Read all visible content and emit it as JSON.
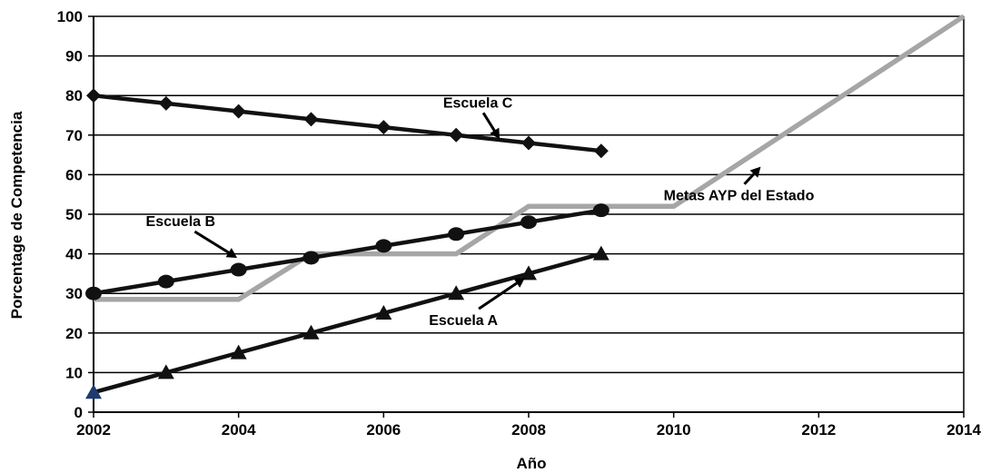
{
  "chart_data": {
    "type": "line",
    "xlabel": "Año",
    "ylabel": "Porcentage de Competencia",
    "xlim": [
      2002,
      2014
    ],
    "ylim": [
      0,
      100
    ],
    "xticks": [
      2002,
      2004,
      2006,
      2008,
      2010,
      2012,
      2014
    ],
    "yticks": [
      0,
      10,
      20,
      30,
      40,
      50,
      60,
      70,
      80,
      90,
      100
    ],
    "grid": "horizontal",
    "legend": "none",
    "series": [
      {
        "name": "Escuela C",
        "marker": "diamond",
        "color": "#111111",
        "x": [
          2002,
          2003,
          2004,
          2005,
          2006,
          2007,
          2008,
          2009
        ],
        "y": [
          80,
          78,
          76,
          74,
          72,
          70,
          68,
          66
        ]
      },
      {
        "name": "Escuela B",
        "marker": "circle",
        "color": "#111111",
        "x": [
          2002,
          2003,
          2004,
          2005,
          2006,
          2007,
          2008,
          2009
        ],
        "y": [
          30,
          33,
          36,
          39,
          42,
          45,
          48,
          51
        ]
      },
      {
        "name": "Escuela A",
        "marker": "triangle",
        "color": "#111111",
        "first_marker_color": "#1f3a6e",
        "x": [
          2002,
          2003,
          2004,
          2005,
          2006,
          2007,
          2008,
          2009
        ],
        "y": [
          5,
          10,
          15,
          20,
          25,
          30,
          35,
          40
        ]
      },
      {
        "name": "Metas AYP del Estado",
        "marker": "none",
        "color": "#a6a6a6",
        "x": [
          2002,
          2004,
          2005,
          2007,
          2008,
          2010,
          2014
        ],
        "y": [
          28.5,
          28.5,
          40,
          40,
          52,
          52,
          100
        ]
      }
    ],
    "annotations": [
      {
        "text": "Escuela C",
        "series": "Escuela C",
        "text_at": [
          2007.3,
          77
        ],
        "arrow_to": [
          2007.6,
          69
        ]
      },
      {
        "text": "Escuela B",
        "series": "Escuela B",
        "text_at": [
          2003.2,
          47
        ],
        "arrow_to": [
          2003.98,
          39
        ]
      },
      {
        "text": "Escuela A",
        "series": "Escuela A",
        "text_at": [
          2007.1,
          22
        ],
        "arrow_to": [
          2007.95,
          34
        ]
      },
      {
        "text": "Metas AYP del Estado",
        "series": "Metas AYP del Estado",
        "text_at": [
          2010.9,
          53.5
        ],
        "arrow_to": [
          2011.2,
          62
        ]
      }
    ]
  }
}
